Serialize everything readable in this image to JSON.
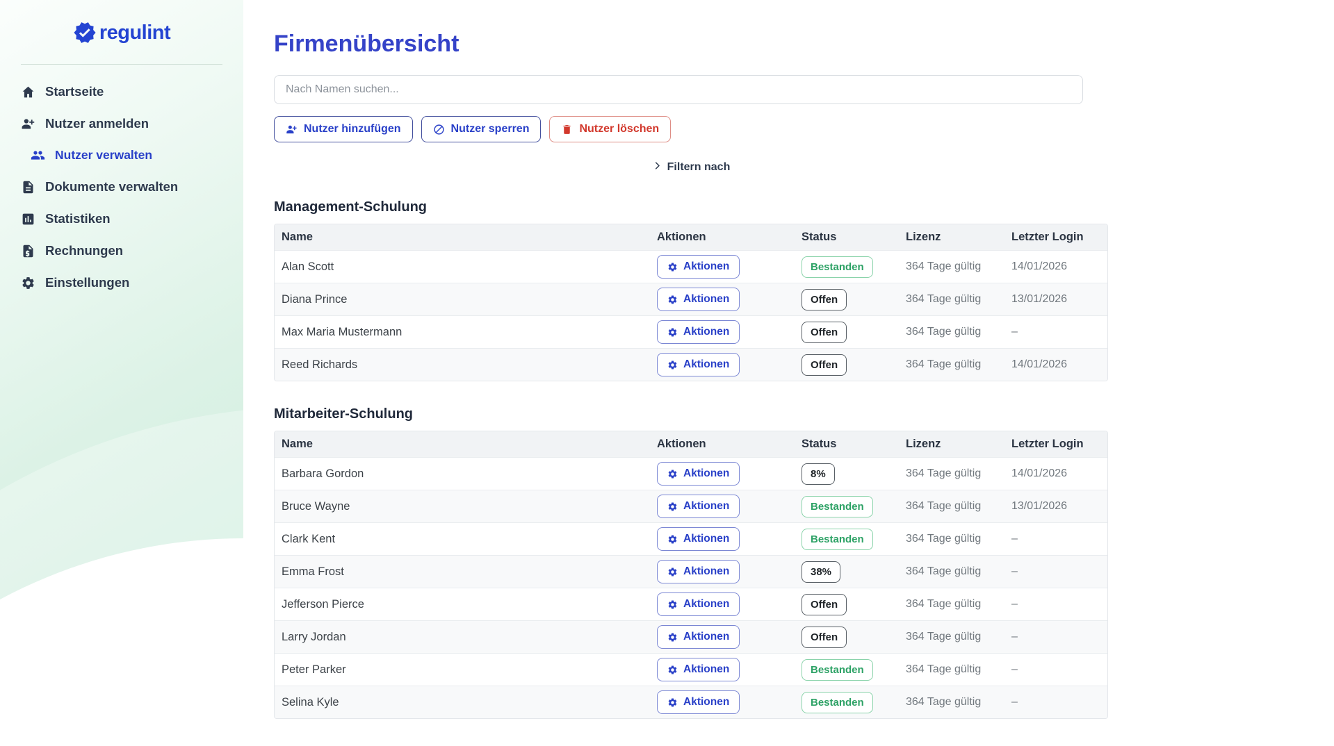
{
  "brand": {
    "name": "regulint",
    "logo_icon": "verified-badge-icon"
  },
  "colors": {
    "accent_blue": "#2940c8",
    "title_blue": "#3543c8",
    "danger_red": "#d2382c",
    "success_green": "#2ea266",
    "sidebar_mint": "#c8ebdb",
    "table_header_gray": "#f1f3f5"
  },
  "sidebar": {
    "items": [
      {
        "label": "Startseite",
        "icon": "home-icon",
        "active": false,
        "indent": false
      },
      {
        "label": "Nutzer anmelden",
        "icon": "user-plus-icon",
        "active": false,
        "indent": false
      },
      {
        "label": "Nutzer verwalten",
        "icon": "users-icon",
        "active": true,
        "indent": true
      },
      {
        "label": "Dokumente verwalten",
        "icon": "document-icon",
        "active": false,
        "indent": false
      },
      {
        "label": "Statistiken",
        "icon": "chart-icon",
        "active": false,
        "indent": false
      },
      {
        "label": "Rechnungen",
        "icon": "invoice-icon",
        "active": false,
        "indent": false
      },
      {
        "label": "Einstellungen",
        "icon": "gear-icon",
        "active": false,
        "indent": false
      }
    ]
  },
  "page": {
    "title": "Firmenübersicht"
  },
  "search": {
    "placeholder": "Nach Namen suchen..."
  },
  "toolbar": {
    "buttons": [
      {
        "label": "Nutzer hinzufügen",
        "icon": "user-plus-icon",
        "variant": "primary"
      },
      {
        "label": "Nutzer sperren",
        "icon": "ban-icon",
        "variant": "primary"
      },
      {
        "label": "Nutzer löschen",
        "icon": "trash-icon",
        "variant": "danger"
      }
    ]
  },
  "filter": {
    "label": "Filtern nach",
    "icon": "chevron-right-icon"
  },
  "tables": [
    {
      "title": "Management-Schulung",
      "columns": [
        "Name",
        "Aktionen",
        "Status",
        "Lizenz",
        "Letzter Login"
      ],
      "action_label": "Aktionen",
      "action_icon": "gear-icon",
      "rows": [
        {
          "name": "Alan Scott",
          "status": "Bestanden",
          "status_type": "success",
          "lizenz": "364 Tage gültig",
          "letzter_login": "14/01/2026"
        },
        {
          "name": "Diana Prince",
          "status": "Offen",
          "status_type": "neutral",
          "lizenz": "364 Tage gültig",
          "letzter_login": "13/01/2026"
        },
        {
          "name": "Max Maria Mustermann",
          "status": "Offen",
          "status_type": "neutral",
          "lizenz": "364 Tage gültig",
          "letzter_login": "–"
        },
        {
          "name": "Reed Richards",
          "status": "Offen",
          "status_type": "neutral",
          "lizenz": "364 Tage gültig",
          "letzter_login": "14/01/2026"
        }
      ]
    },
    {
      "title": "Mitarbeiter-Schulung",
      "columns": [
        "Name",
        "Aktionen",
        "Status",
        "Lizenz",
        "Letzter Login"
      ],
      "action_label": "Aktionen",
      "action_icon": "gear-icon",
      "rows": [
        {
          "name": "Barbara Gordon",
          "status": "8%",
          "status_type": "neutral",
          "lizenz": "364 Tage gültig",
          "letzter_login": "14/01/2026"
        },
        {
          "name": "Bruce Wayne",
          "status": "Bestanden",
          "status_type": "success",
          "lizenz": "364 Tage gültig",
          "letzter_login": "13/01/2026"
        },
        {
          "name": "Clark Kent",
          "status": "Bestanden",
          "status_type": "success",
          "lizenz": "364 Tage gültig",
          "letzter_login": "–"
        },
        {
          "name": "Emma Frost",
          "status": "38%",
          "status_type": "neutral",
          "lizenz": "364 Tage gültig",
          "letzter_login": "–"
        },
        {
          "name": "Jefferson Pierce",
          "status": "Offen",
          "status_type": "neutral",
          "lizenz": "364 Tage gültig",
          "letzter_login": "–"
        },
        {
          "name": "Larry Jordan",
          "status": "Offen",
          "status_type": "neutral",
          "lizenz": "364 Tage gültig",
          "letzter_login": "–"
        },
        {
          "name": "Peter Parker",
          "status": "Bestanden",
          "status_type": "success",
          "lizenz": "364 Tage gültig",
          "letzter_login": "–"
        },
        {
          "name": "Selina Kyle",
          "status": "Bestanden",
          "status_type": "success",
          "lizenz": "364 Tage gültig",
          "letzter_login": "–"
        }
      ]
    }
  ]
}
